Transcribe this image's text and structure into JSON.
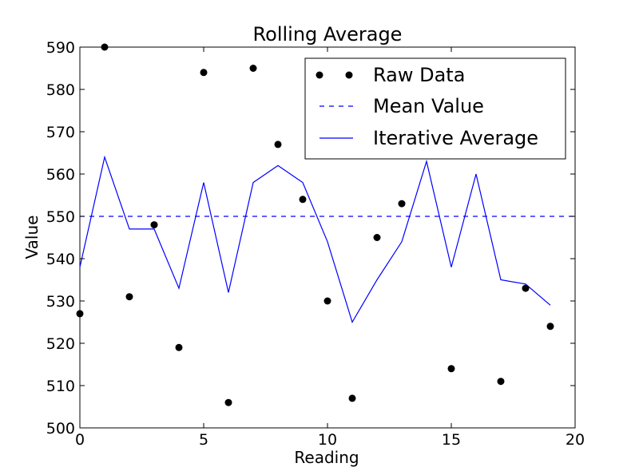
{
  "chart_data": {
    "type": "line",
    "title": "Rolling Average",
    "xlabel": "Reading",
    "ylabel": "Value",
    "xlim": [
      0,
      20
    ],
    "ylim": [
      500,
      590
    ],
    "xticks": [
      0,
      5,
      10,
      15,
      20
    ],
    "yticks": [
      500,
      510,
      520,
      530,
      540,
      550,
      560,
      570,
      580,
      590
    ],
    "grid": false,
    "legend_position": "top-right",
    "series": [
      {
        "name": "Raw Data",
        "style": "markers",
        "color": "#000000",
        "x": [
          0,
          1,
          2,
          3,
          4,
          5,
          6,
          7,
          8,
          9,
          10,
          11,
          12,
          13,
          15,
          17,
          18,
          19
        ],
        "y": [
          527,
          590,
          531,
          548,
          519,
          584,
          506,
          585,
          567,
          554,
          530,
          507,
          545,
          553,
          514,
          511,
          533,
          524
        ]
      },
      {
        "name": "Mean Value",
        "style": "dashed",
        "color": "#0000ff",
        "x": [
          0,
          20
        ],
        "y": [
          550,
          550
        ]
      },
      {
        "name": "Iterative Average",
        "style": "solid",
        "color": "#0000ff",
        "x": [
          0,
          1,
          2,
          3,
          4,
          5,
          6,
          7,
          8,
          9,
          10,
          11,
          12,
          13,
          14,
          15,
          16,
          17,
          18,
          19
        ],
        "y": [
          538,
          564,
          547,
          547,
          533,
          558,
          532,
          558,
          562,
          558,
          544,
          525,
          535,
          544,
          563,
          538,
          560,
          535,
          534,
          529
        ]
      }
    ]
  }
}
